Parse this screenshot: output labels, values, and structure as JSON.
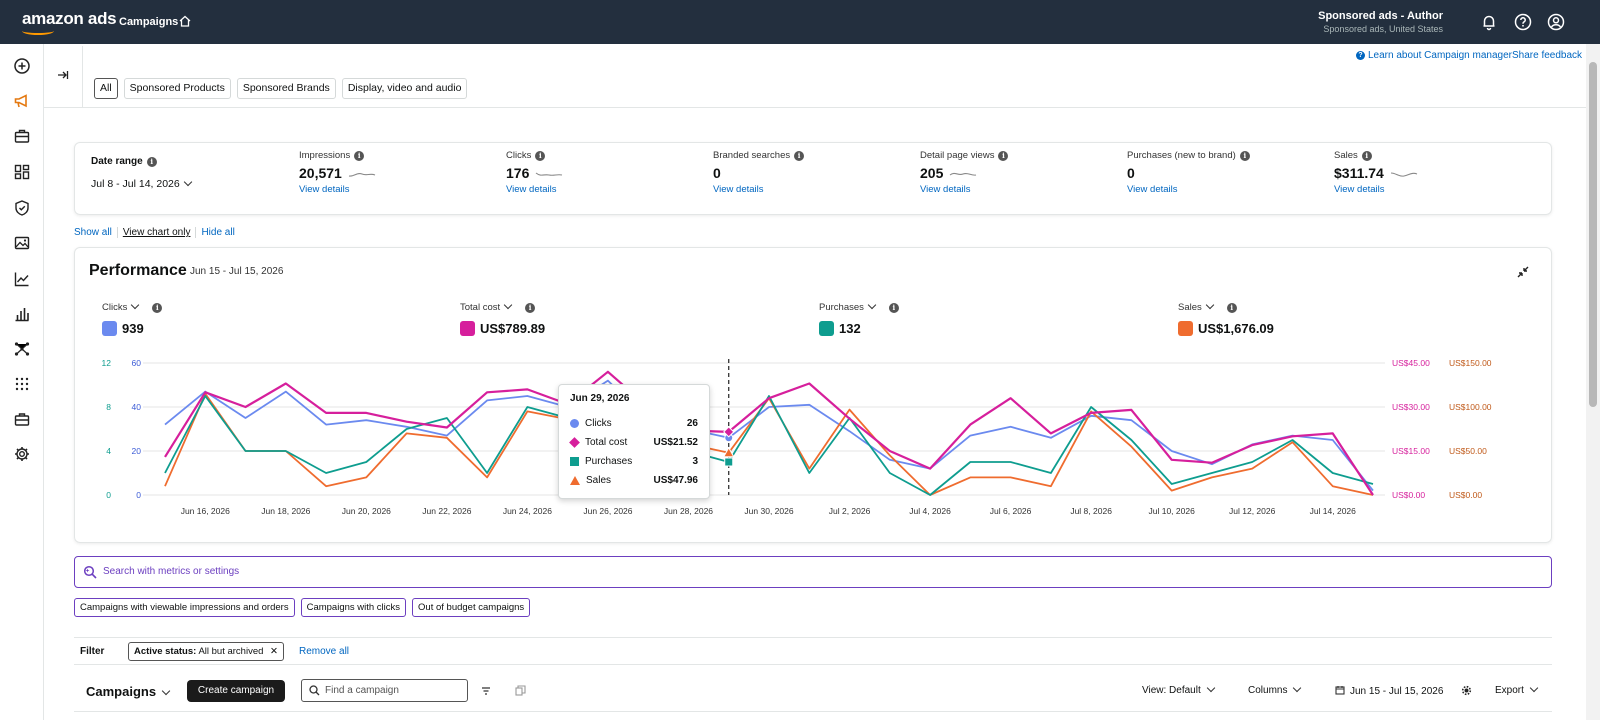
{
  "header": {
    "logo": "amazon ads",
    "app_title": "Campaigns",
    "account_name": "Sponsored ads - Author",
    "account_sub": "Sponsored ads, United States",
    "icons": [
      "home-icon",
      "bell-icon",
      "help-icon",
      "profile-icon"
    ]
  },
  "rail": {
    "icons": [
      "plus-circle-icon",
      "megaphone-icon",
      "briefcase-icon",
      "dashboard-icon",
      "shield-icon",
      "image-icon",
      "line-chart-icon",
      "bar-chart-icon",
      "network-icon",
      "apps-grid-icon",
      "toolbox-icon",
      "settings-icon"
    ]
  },
  "top_links": {
    "learn": "Learn about Campaign manager",
    "feedback": "Share feedback"
  },
  "tabs": [
    "All",
    "Sponsored Products",
    "Sponsored Brands",
    "Display, video and audio"
  ],
  "kpis": {
    "date_range_label": "Date range",
    "date_range_value": "Jul 8 - Jul 14, 2026",
    "items": [
      {
        "label": "Impressions",
        "value": "20,571",
        "link": "View details"
      },
      {
        "label": "Clicks",
        "value": "176",
        "link": "View details"
      },
      {
        "label": "Branded searches",
        "value": "0",
        "link": "View details"
      },
      {
        "label": "Detail page views",
        "value": "205",
        "link": "View details"
      },
      {
        "label": "Purchases (new to brand)",
        "value": "0",
        "link": "View details"
      },
      {
        "label": "Sales",
        "value": "$311.74",
        "link": "View details"
      }
    ]
  },
  "show_links": {
    "show_all": "Show all",
    "view_chart": "View chart only",
    "hide_all": "Hide all"
  },
  "performance": {
    "title": "Performance",
    "range": "Jun 15 - Jul 15, 2026",
    "metrics": [
      {
        "label": "Clicks",
        "value": "939",
        "color": "#6b8aef"
      },
      {
        "label": "Total cost",
        "value": "US$789.89",
        "color": "#d61f9c"
      },
      {
        "label": "Purchases",
        "value": "132",
        "color": "#0e9d8f"
      },
      {
        "label": "Sales",
        "value": "US$1,676.09",
        "color": "#ef6c2f"
      }
    ],
    "tooltip": {
      "date": "Jun 29, 2026",
      "rows": [
        {
          "label": "Clicks",
          "value": "26"
        },
        {
          "label": "Total cost",
          "value": "US$21.52"
        },
        {
          "label": "Purchases",
          "value": "3"
        },
        {
          "label": "Sales",
          "value": "US$47.96"
        }
      ]
    }
  },
  "chart_data": {
    "type": "line",
    "x": [
      "Jun 15",
      "Jun 16",
      "Jun 17",
      "Jun 18",
      "Jun 19",
      "Jun 20",
      "Jun 21",
      "Jun 22",
      "Jun 23",
      "Jun 24",
      "Jun 25",
      "Jun 26",
      "Jun 27",
      "Jun 28",
      "Jun 29",
      "Jun 30",
      "Jul 1",
      "Jul 2",
      "Jul 3",
      "Jul 4",
      "Jul 5",
      "Jul 6",
      "Jul 7",
      "Jul 8",
      "Jul 9",
      "Jul 10",
      "Jul 11",
      "Jul 12",
      "Jul 13",
      "Jul 14",
      "Jul 15"
    ],
    "x_tick_labels": [
      "Jun 16, 2026",
      "Jun 18, 2026",
      "Jun 20, 2026",
      "Jun 22, 2026",
      "Jun 24, 2026",
      "Jun 26, 2026",
      "Jun 28, 2026",
      "Jun 30, 2026",
      "Jul 2, 2026",
      "Jul 4, 2026",
      "Jul 6, 2026",
      "Jul 8, 2026",
      "Jul 10, 2026",
      "Jul 12, 2026",
      "Jul 14, 2026"
    ],
    "axes": [
      {
        "name": "purchases-axis",
        "color": "#0e9d8f",
        "ticks": [
          "0",
          "4",
          "8",
          "12"
        ],
        "range": [
          0,
          12
        ]
      },
      {
        "name": "clicks-axis",
        "color": "#3b5bd6",
        "ticks": [
          "0",
          "20",
          "40",
          "60"
        ],
        "range": [
          0,
          60
        ]
      },
      {
        "name": "cost-axis",
        "color": "#d61f9c",
        "ticks": [
          "US$0.00",
          "US$15.00",
          "US$30.00",
          "US$45.00"
        ],
        "range": [
          0,
          45
        ]
      },
      {
        "name": "sales-axis",
        "color": "#c05a1a",
        "ticks": [
          "US$0.00",
          "US$50.00",
          "US$100.00",
          "US$150.00"
        ],
        "range": [
          0,
          150
        ]
      }
    ],
    "series": [
      {
        "name": "Clicks",
        "color": "#6b8aef",
        "axis": 1,
        "values": [
          32,
          47,
          35,
          47,
          32,
          34,
          31,
          27,
          43,
          45,
          40,
          52,
          34,
          30,
          26,
          40,
          41,
          29,
          16,
          12,
          27,
          31,
          26,
          36,
          34,
          20,
          14,
          23,
          27,
          25,
          2
        ]
      },
      {
        "name": "Total cost",
        "color": "#d61f9c",
        "axis": 2,
        "values": [
          13,
          35,
          30,
          38,
          28,
          28,
          25,
          23,
          35,
          36,
          31,
          42,
          30,
          22,
          21.52,
          33,
          38,
          26,
          15,
          9,
          24,
          33,
          21,
          28,
          29,
          12,
          11,
          17,
          20,
          21,
          0
        ]
      },
      {
        "name": "Purchases",
        "color": "#0e9d8f",
        "axis": 0,
        "values": [
          2,
          9,
          4,
          4,
          2,
          3,
          6,
          7,
          2,
          8,
          7,
          8,
          5,
          4,
          3,
          9,
          2,
          7,
          2,
          0,
          3,
          3,
          2,
          8,
          5,
          1,
          2,
          3,
          5,
          2,
          1
        ]
      },
      {
        "name": "Sales",
        "color": "#ef6c2f",
        "axis": 3,
        "values": [
          10,
          115,
          50,
          50,
          10,
          20,
          70,
          65,
          20,
          95,
          86,
          107,
          62,
          58,
          47.96,
          110,
          30,
          97,
          45,
          0,
          20,
          20,
          10,
          95,
          55,
          5,
          20,
          30,
          60,
          10,
          0
        ]
      }
    ],
    "highlight_index": 14
  },
  "search": {
    "placeholder": "Search with metrics or settings"
  },
  "chips": [
    "Campaigns with viewable impressions and orders",
    "Campaigns with clicks",
    "Out of budget campaigns"
  ],
  "filter": {
    "label": "Filter",
    "status_key": "Active status:",
    "status_val": "All but archived",
    "remove_all": "Remove all"
  },
  "campaigns": {
    "title": "Campaigns",
    "create": "Create campaign",
    "find_placeholder": "Find a campaign",
    "view": "View: Default",
    "columns": "Columns",
    "date": "Jun 15 - Jul 15, 2026",
    "export": "Export"
  }
}
